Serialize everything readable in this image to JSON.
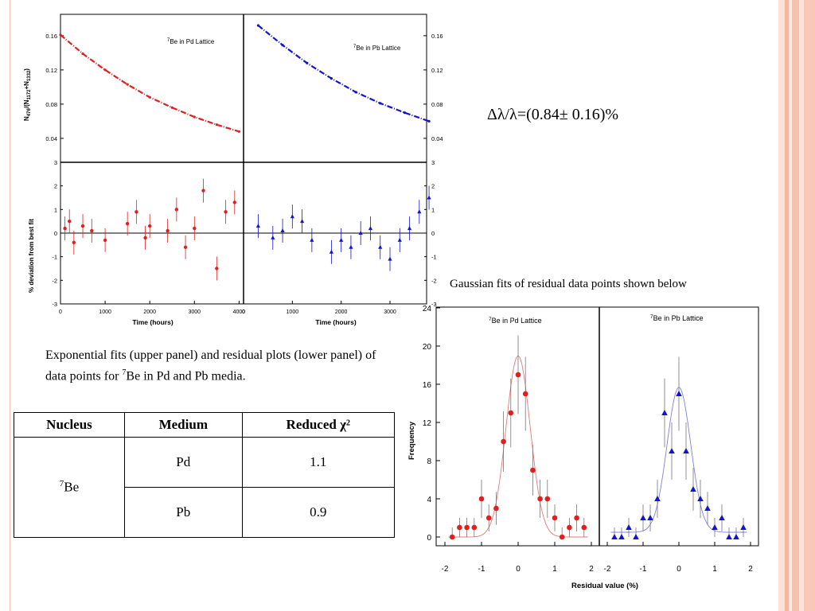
{
  "slide": {
    "formula": "Δλ/λ=(0.84± 0.16)%",
    "caption_exp": "Exponential fits (upper panel) and residual plots (lower panel) of data points for ",
    "caption_exp_sup": "7",
    "caption_exp_tail": "Be in Pd and Pb media.",
    "caption_gauss": "Gaussian fits of residual data points shown below"
  },
  "table": {
    "headers": [
      "Nucleus",
      "Medium",
      "Reduced χ²"
    ],
    "nucleus": "Be",
    "nucleus_sup": "7",
    "rows": [
      {
        "medium": "Pd",
        "chi2": "1.1"
      },
      {
        "medium": "Pb",
        "chi2": "0.9"
      }
    ]
  },
  "colors": {
    "pd": "#e02020",
    "pb": "#1414d0",
    "stripe_a": "#f6c2ae",
    "stripe_b": "#fde4da"
  },
  "chart_data": [
    {
      "id": "decay",
      "type": "scatter",
      "series": [
        {
          "name": "⁷Be in Pd Lattice",
          "x": [
            0,
            500,
            1000,
            1500,
            2000,
            2500,
            3000,
            3500,
            4000
          ],
          "values": [
            0.161,
            0.139,
            0.12,
            0.103,
            0.088,
            0.076,
            0.065,
            0.056,
            0.048
          ]
        },
        {
          "name": "⁷Be in Pb Lattice",
          "x": [
            300,
            800,
            1300,
            1800,
            2300,
            2800,
            3300,
            3800
          ],
          "values": [
            0.172,
            0.149,
            0.128,
            0.11,
            0.094,
            0.081,
            0.07,
            0.06
          ]
        }
      ],
      "ylabel": "N476/(N1172+N1332)",
      "ylabel_main": "N",
      "ylabel_s1": "476",
      "ylabel_mid": "/(N",
      "ylabel_s2": "1172",
      "ylabel_plus": "+N",
      "ylabel_s3": "1332",
      "ylabel_end": ")",
      "yticks": [
        "0.04",
        "0.08",
        "0.12",
        "0.16"
      ],
      "ylim": [
        0.012,
        0.185
      ]
    },
    {
      "id": "residuals",
      "type": "scatter",
      "series": [
        {
          "name": "Pd",
          "x": [
            100,
            200,
            300,
            500,
            700,
            1000,
            1500,
            1700,
            1900,
            2000,
            2400,
            2600,
            2800,
            3000,
            3200,
            3500,
            3700,
            3900
          ],
          "values": [
            0.2,
            0.5,
            -0.4,
            0.3,
            0.1,
            -0.3,
            0.4,
            0.9,
            -0.2,
            0.3,
            0.1,
            1.0,
            -0.6,
            0.2,
            1.8,
            -1.5,
            0.9,
            1.3
          ]
        },
        {
          "name": "Pb",
          "x": [
            300,
            600,
            800,
            1000,
            1200,
            1400,
            1800,
            2000,
            2200,
            2400,
            2600,
            2800,
            3000,
            3200,
            3400,
            3600,
            3800
          ],
          "values": [
            0.3,
            -0.2,
            0.1,
            0.7,
            0.5,
            -0.3,
            -0.8,
            -0.3,
            -0.6,
            0.0,
            0.2,
            -0.6,
            -1.1,
            -0.3,
            0.2,
            0.9,
            1.5
          ]
        }
      ],
      "ylabel": "% deviation from best fit",
      "xlabel": "Time (hours)",
      "xticks_pd": [
        "0",
        "1000",
        "2000",
        "3000",
        "4000"
      ],
      "xticks_pb": [
        "0",
        "1000",
        "2000",
        "3000"
      ],
      "yticks": [
        "-3",
        "-2",
        "-1",
        "0",
        "1",
        "2",
        "3"
      ],
      "ylim": [
        -3,
        3
      ]
    },
    {
      "id": "gaussian",
      "type": "scatter",
      "series": [
        {
          "name": "⁷Be in Pd Lattice",
          "x": [
            -1.8,
            -1.6,
            -1.4,
            -1.2,
            -1.0,
            -0.8,
            -0.6,
            -0.4,
            -0.2,
            0.0,
            0.2,
            0.4,
            0.6,
            0.8,
            1.0,
            1.2,
            1.4,
            1.6,
            1.8
          ],
          "values": [
            0,
            1,
            1,
            1,
            4,
            2,
            3,
            10,
            13,
            17,
            15,
            7,
            4,
            4,
            2,
            0,
            1,
            2,
            1
          ]
        },
        {
          "name": "⁷Be in Pb Lattice",
          "x": [
            -1.8,
            -1.6,
            -1.4,
            -1.2,
            -1.0,
            -0.8,
            -0.6,
            -0.4,
            -0.2,
            0.0,
            0.2,
            0.4,
            0.6,
            0.8,
            1.0,
            1.2,
            1.4,
            1.6,
            1.8
          ],
          "values": [
            0,
            0,
            1,
            0,
            2,
            2,
            4,
            13,
            9,
            15,
            9,
            5,
            4,
            3,
            1,
            2,
            0,
            0,
            1
          ]
        }
      ],
      "ylabel": "Frequency",
      "xlabel": "Residual value (%)",
      "xticks": [
        "-2",
        "-1",
        "0",
        "1",
        "2"
      ],
      "yticks": [
        "0",
        "4",
        "8",
        "12",
        "16",
        "20",
        "24"
      ],
      "ylim": [
        0,
        24
      ]
    }
  ]
}
